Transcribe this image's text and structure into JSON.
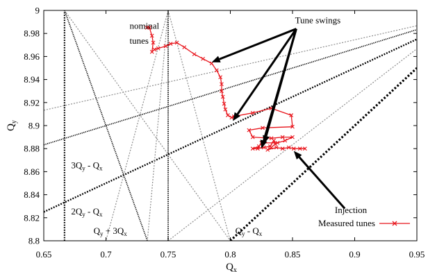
{
  "chart_data": {
    "type": "scatter",
    "title": "",
    "xlabel": "Q",
    "xlabel_sub": "x",
    "ylabel": "Q",
    "ylabel_sub": "y",
    "xlim": [
      0.65,
      0.95
    ],
    "ylim": [
      8.8,
      9.0
    ],
    "x_ticks": [
      0.65,
      0.7,
      0.75,
      0.8,
      0.85,
      0.9,
      0.95
    ],
    "x_tick_labels": [
      "0.65",
      "0.7",
      "0.75",
      "0.8",
      "0.85",
      "0.9",
      "0.95"
    ],
    "y_ticks": [
      8.8,
      8.82,
      8.84,
      8.86,
      8.88,
      8.9,
      8.92,
      8.94,
      8.96,
      8.98,
      9.0
    ],
    "y_tick_labels": [
      "8.8",
      "8.82",
      "8.84",
      "8.86",
      "8.88",
      "8.9",
      "8.92",
      "8.94",
      "8.96",
      "8.98",
      "9"
    ],
    "grid": false,
    "legend_position": "bottom-right",
    "series": [
      {
        "name": "Measured tunes",
        "color": "#e8141b",
        "marker": "x",
        "points": [
          [
            0.733,
            8.985
          ],
          [
            0.735,
            8.985
          ],
          [
            0.737,
            8.978
          ],
          [
            0.738,
            8.972
          ],
          [
            0.737,
            8.964
          ],
          [
            0.739,
            8.966
          ],
          [
            0.742,
            8.967
          ],
          [
            0.748,
            8.969
          ],
          [
            0.752,
            8.971
          ],
          [
            0.757,
            8.972
          ],
          [
            0.763,
            8.968
          ],
          [
            0.771,
            8.962
          ],
          [
            0.778,
            8.958
          ],
          [
            0.785,
            8.954
          ],
          [
            0.789,
            8.948
          ],
          [
            0.792,
            8.942
          ],
          [
            0.793,
            8.936
          ],
          [
            0.793,
            8.93
          ],
          [
            0.794,
            8.925
          ],
          [
            0.795,
            8.919
          ],
          [
            0.796,
            8.914
          ],
          [
            0.798,
            8.909
          ],
          [
            0.801,
            8.907
          ],
          [
            0.803,
            8.908
          ],
          [
            0.818,
            8.911
          ],
          [
            0.833,
            8.915
          ],
          [
            0.849,
            8.909
          ],
          [
            0.85,
            8.899
          ],
          [
            0.826,
            8.898
          ],
          [
            0.815,
            8.896
          ],
          [
            0.818,
            8.89
          ],
          [
            0.833,
            8.889
          ],
          [
            0.842,
            8.89
          ],
          [
            0.85,
            8.89
          ],
          [
            0.844,
            8.887
          ],
          [
            0.838,
            8.885
          ],
          [
            0.825,
            8.885
          ],
          [
            0.823,
            8.882
          ],
          [
            0.818,
            8.88
          ],
          [
            0.822,
            8.88
          ],
          [
            0.827,
            8.881
          ],
          [
            0.832,
            8.882
          ],
          [
            0.835,
            8.887
          ],
          [
            0.836,
            8.884
          ],
          [
            0.833,
            8.881
          ],
          [
            0.83,
            8.879
          ],
          [
            0.837,
            8.881
          ],
          [
            0.842,
            8.88
          ],
          [
            0.847,
            8.881
          ],
          [
            0.851,
            8.88
          ],
          [
            0.856,
            8.88
          ],
          [
            0.86,
            8.88
          ]
        ]
      }
    ],
    "resonance_lines": [
      {
        "style": "black-dotted",
        "width": 2.2,
        "points": [
          [
            0.6667,
            8.8
          ],
          [
            0.6667,
            9.0
          ]
        ]
      },
      {
        "style": "black-dotted",
        "width": 1.8,
        "points": [
          [
            0.75,
            8.8
          ],
          [
            0.75,
            9.0
          ]
        ]
      },
      {
        "style": "black-dotted",
        "width": 2.4,
        "points": [
          [
            0.65,
            8.825
          ],
          [
            0.95,
            8.975
          ]
        ]
      },
      {
        "style": "black-dotted",
        "width": 3.2,
        "points": [
          [
            0.8,
            8.8
          ],
          [
            0.95,
            8.95
          ]
        ]
      },
      {
        "style": "black-dotted",
        "width": 1.6,
        "points": [
          [
            0.65,
            8.8833
          ],
          [
            0.95,
            8.9833
          ]
        ]
      },
      {
        "style": "black-dotted",
        "width": 1.6,
        "points": [
          [
            0.6667,
            9.0
          ],
          [
            0.7333,
            8.8
          ]
        ]
      },
      {
        "style": "gray-dotted",
        "width": 1.2,
        "points": [
          [
            0.65,
            8.9133
          ],
          [
            0.95,
            8.9867
          ]
        ]
      },
      {
        "style": "gray-dotted",
        "width": 1.2,
        "points": [
          [
            0.75,
            8.8
          ],
          [
            0.95,
            8.9667
          ]
        ]
      },
      {
        "style": "gray-dotted",
        "width": 1.2,
        "points": [
          [
            0.6667,
            9.0
          ],
          [
            0.8,
            8.8
          ]
        ]
      },
      {
        "style": "gray-dotted",
        "width": 1.2,
        "points": [
          [
            0.75,
            9.0
          ],
          [
            0.7,
            8.8
          ]
        ]
      },
      {
        "style": "gray-dotted",
        "width": 1.2,
        "points": [
          [
            0.75,
            9.0
          ],
          [
            0.8,
            8.8
          ]
        ]
      },
      {
        "style": "gray-dotted",
        "width": 1.2,
        "points": [
          [
            0.75,
            9.0
          ],
          [
            0.7333,
            8.8
          ]
        ]
      }
    ],
    "arrows": [
      {
        "from": [
          0.853,
          8.984
        ],
        "to": [
          0.785,
          8.955
        ]
      },
      {
        "from": [
          0.853,
          8.984
        ],
        "to": [
          0.802,
          8.904
        ]
      },
      {
        "from": [
          0.853,
          8.984
        ],
        "to": [
          0.827,
          8.884
        ]
      },
      {
        "from": [
          0.853,
          8.984
        ],
        "to": [
          0.825,
          8.88
        ]
      },
      {
        "from": [
          0.892,
          8.828
        ],
        "to": [
          0.851,
          8.878
        ]
      }
    ],
    "annotations": [
      {
        "id": "nominal-tunes-1",
        "text": "nominal",
        "x": 0.719,
        "y": 8.984
      },
      {
        "id": "nominal-tunes-2",
        "text": "tunes",
        "x": 0.719,
        "y": 8.971
      },
      {
        "id": "tune-swings",
        "text": "Tune swings",
        "x": 0.852,
        "y": 8.989
      },
      {
        "id": "injection",
        "text": "Injection",
        "x": 0.884,
        "y": 8.824
      }
    ],
    "resonance_labels": [
      {
        "id": "label-3qy-qx",
        "base": "3Q",
        "sub": "y",
        "rest": " - Q",
        "sub2": "x",
        "x": 0.672,
        "y": 8.863
      },
      {
        "id": "label-2qy-qx",
        "base": "2Q",
        "sub": "y",
        "rest": " - Q",
        "sub2": "x",
        "x": 0.672,
        "y": 8.823
      },
      {
        "id": "label-qy-3qx",
        "base": "Q",
        "sub": "y",
        "rest": " + 3Q",
        "sub2": "x",
        "x": 0.69,
        "y": 8.806
      },
      {
        "id": "label-qy-qx",
        "base": "Q",
        "sub": "y",
        "rest": " - Q",
        "sub2": "x",
        "x": 0.804,
        "y": 8.806
      }
    ]
  }
}
